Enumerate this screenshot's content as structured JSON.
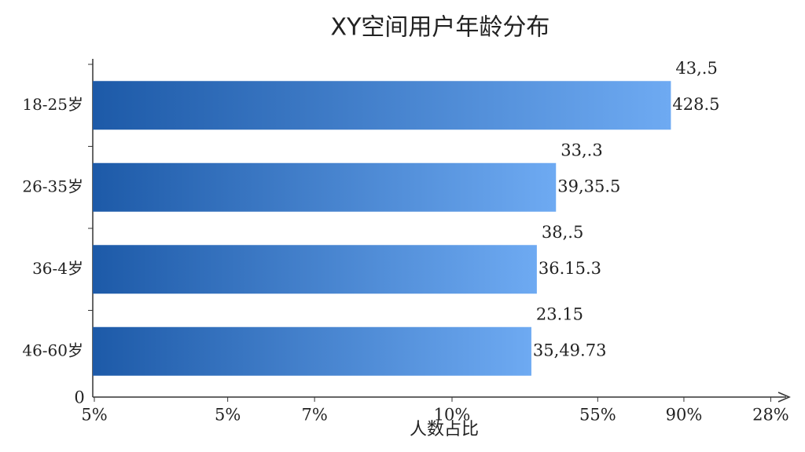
{
  "chart_data": {
    "type": "hbar",
    "title": "XY空间用户年龄分布",
    "x_label": "人数占比",
    "origin_label": "0",
    "categories": [
      "18-25岁",
      "26-35岁",
      "36-4岁",
      "46-60岁"
    ],
    "values": [
      84.3,
      67.5,
      64.7,
      63.9
    ],
    "bar_labels": [
      [
        "43,.5",
        "428.5"
      ],
      [
        "33,.3",
        "39,35.5"
      ],
      [
        "38,.5",
        "36.15.3"
      ],
      [
        "23.15",
        "35,49.73"
      ]
    ],
    "color_start": "#1d5aa8",
    "color_end": "#6eaaf2",
    "xlim": [
      0,
      100
    ],
    "xticks": [
      {
        "value": 0,
        "label": "5%"
      },
      {
        "value": 19.5,
        "label": "5%"
      },
      {
        "value": 32.2,
        "label": "7%"
      },
      {
        "value": 52.3,
        "label": "10%"
      },
      {
        "value": 73.6,
        "label": "55%"
      },
      {
        "value": 86.2,
        "label": "90%"
      },
      {
        "value": 98.9,
        "label": "28%"
      }
    ]
  }
}
